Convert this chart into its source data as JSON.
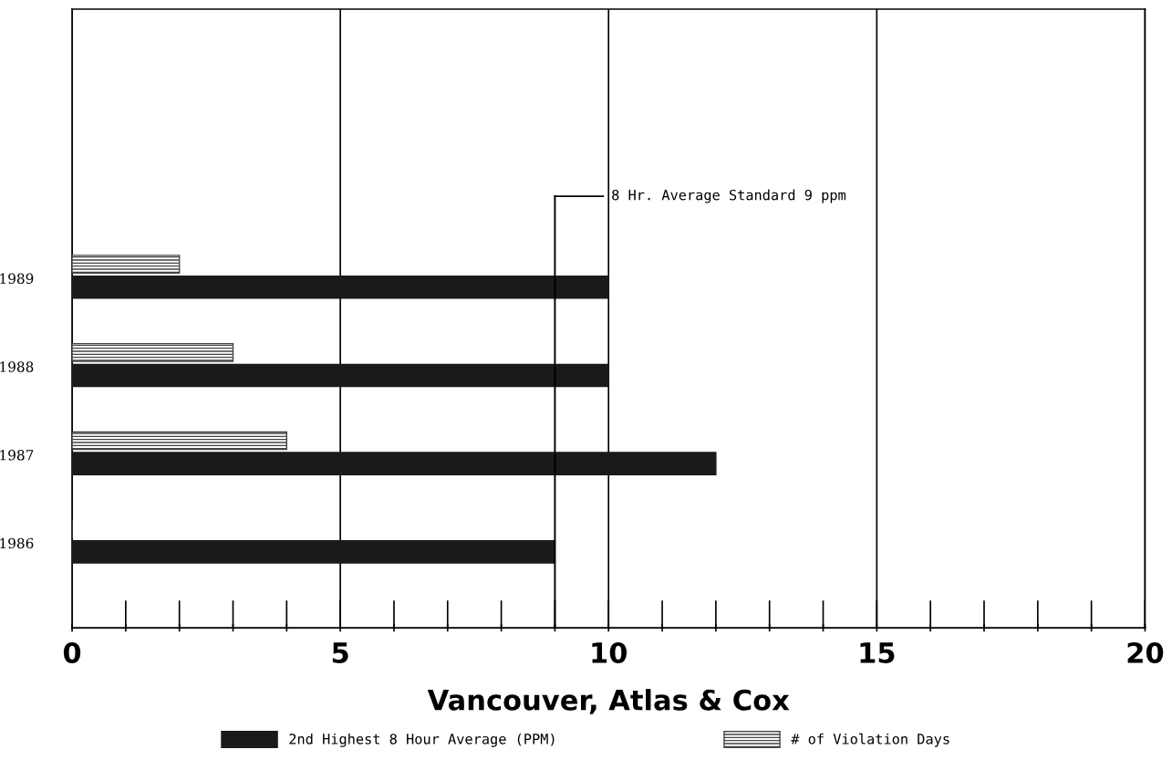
{
  "chart_data": {
    "type": "bar",
    "orientation": "horizontal",
    "xlabel": "Vancouver, Atlas & Cox",
    "categories": [
      "1989",
      "1988",
      "1987",
      "1986"
    ],
    "series": [
      {
        "name": "2nd Highest 8 Hour Average (PPM)",
        "color": "#1a1a1a",
        "values": [
          10,
          10,
          12,
          9
        ]
      },
      {
        "name": "# of Violation Days",
        "color": "#444444",
        "values": [
          2,
          3,
          4,
          0
        ]
      }
    ],
    "xlim": [
      0,
      20
    ],
    "xticks": [
      0,
      {
        "value": 1,
        "label": null
      },
      {
        "value": 2,
        "label": null
      },
      {
        "value": 3,
        "label": null
      },
      {
        "value": 4,
        "label": null
      },
      5,
      {
        "value": 6,
        "label": null
      },
      {
        "value": 7,
        "label": null
      },
      {
        "value": 8,
        "label": null
      },
      {
        "value": 9,
        "label": null
      },
      10,
      {
        "value": 11,
        "label": null
      },
      {
        "value": 12,
        "label": null
      },
      {
        "value": 13,
        "label": null
      },
      {
        "value": 14,
        "label": null
      },
      15,
      {
        "value": 16,
        "label": null
      },
      {
        "value": 17,
        "label": null
      },
      {
        "value": 18,
        "label": null
      },
      {
        "value": 19,
        "label": null
      },
      20
    ],
    "grid": "x",
    "ref_lines": [
      {
        "axis": "x",
        "value": 9,
        "label": "8 Hr. Average Standard 9 ppm"
      }
    ],
    "legend": "bottom"
  }
}
